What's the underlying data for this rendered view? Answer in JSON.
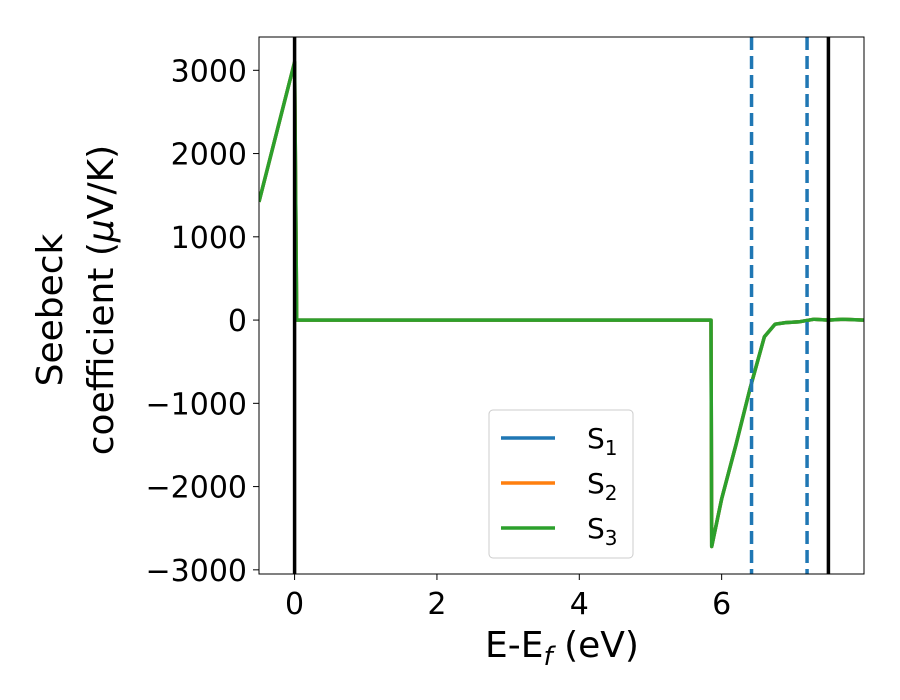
{
  "chart_data": {
    "type": "line",
    "title": "",
    "xlabel": {
      "base": "E-E",
      "sub": "f",
      "suffix": " (eV)"
    },
    "ylabel_line1": "Seebeck",
    "ylabel_line2": {
      "pre": "coefficient  (",
      "mu": "μ",
      "post": "V/K)"
    },
    "xlim": [
      -0.5,
      8.0
    ],
    "ylim": [
      -3050,
      3400
    ],
    "xticks": [
      0,
      2,
      4,
      6
    ],
    "xtick_labels": [
      "0",
      "2",
      "4",
      "6"
    ],
    "yticks": [
      -3000,
      -2000,
      -1000,
      0,
      1000,
      2000,
      3000
    ],
    "ytick_labels": [
      "−3000",
      "−2000",
      "−1000",
      "0",
      "1000",
      "2000",
      "3000"
    ],
    "grid": false,
    "legend_position": "lower-center",
    "vertical_lines": [
      {
        "x": 0.0,
        "style": "solid",
        "color": "#000000"
      },
      {
        "x": 7.5,
        "style": "solid",
        "color": "#000000"
      },
      {
        "x": 6.42,
        "style": "dashed",
        "color": "#1f77b4"
      },
      {
        "x": 7.2,
        "style": "dashed",
        "color": "#1f77b4"
      }
    ],
    "series": [
      {
        "name": {
          "base": "S",
          "sub": "1"
        },
        "color": "#1f77b4",
        "x": [
          -0.5,
          0.0,
          0.03,
          5.85,
          5.86,
          6.0,
          6.2,
          6.4,
          6.6,
          6.75,
          6.9,
          7.1,
          7.3,
          7.5,
          7.7,
          8.0
        ],
        "y": [
          1420,
          3100,
          0,
          0,
          -2720,
          -2150,
          -1500,
          -820,
          -200,
          -50,
          -30,
          -20,
          10,
          0,
          10,
          0
        ]
      },
      {
        "name": {
          "base": "S",
          "sub": "2"
        },
        "color": "#ff7f0e",
        "x": [
          -0.5,
          0.0,
          0.03,
          5.85,
          5.86,
          6.0,
          6.2,
          6.4,
          6.6,
          6.75,
          6.9,
          7.1,
          7.3,
          7.5,
          7.7,
          8.0
        ],
        "y": [
          1420,
          3100,
          0,
          0,
          -2720,
          -2150,
          -1500,
          -820,
          -200,
          -50,
          -30,
          -20,
          10,
          0,
          10,
          0
        ]
      },
      {
        "name": {
          "base": "S",
          "sub": "3"
        },
        "color": "#2ca02c",
        "x": [
          -0.5,
          0.0,
          0.03,
          5.85,
          5.86,
          6.0,
          6.2,
          6.4,
          6.6,
          6.75,
          6.9,
          7.1,
          7.3,
          7.5,
          7.7,
          8.0
        ],
        "y": [
          1420,
          3100,
          0,
          0,
          -2720,
          -2150,
          -1500,
          -820,
          -200,
          -50,
          -30,
          -20,
          10,
          0,
          10,
          0
        ]
      }
    ]
  }
}
